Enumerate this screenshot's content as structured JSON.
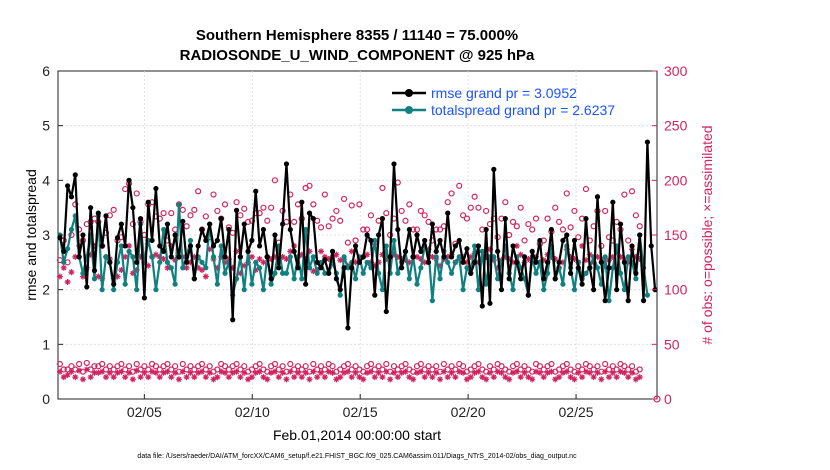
{
  "chart_data": {
    "type": "line",
    "title": [
      "Southern Hemisphere 8355 / 11140 = 75.000%",
      "RADIOSONDE_U_WIND_COMPONENT @ 925 hPa"
    ],
    "xlabel": "Feb.01,2014 00:00:00 start",
    "ylabel": "rmse and totalspread",
    "y2label": "# of obs: o=possible; ×=assimilated",
    "xlim": [
      1,
      28.75
    ],
    "ylim": [
      0,
      6
    ],
    "y2lim": [
      0,
      300
    ],
    "xticks": [
      5,
      10,
      15,
      20,
      25
    ],
    "xticklabels": [
      "02/05",
      "02/10",
      "02/15",
      "02/20",
      "02/25"
    ],
    "yticks": [
      0,
      1,
      2,
      3,
      4,
      5,
      6
    ],
    "y2ticks": [
      0,
      50,
      100,
      150,
      200,
      250,
      300
    ],
    "footnote": "data file: /Users/raeder/DAI/ATM_forcXX/CAM6_setup/f.e21.FHIST_BGC.f09_025.CAM6assim.011/Diags_NTrS_2014-02/obs_diag_output.nc",
    "legend": {
      "position": "top-right",
      "entries": [
        "rmse grand pr = 3.0952",
        "totalspread grand pr = 2.6237"
      ]
    },
    "series": [
      {
        "name": "rmse",
        "color": "#000000",
        "marker": "dot",
        "values": [
          2.95,
          2.7,
          3.9,
          3.7,
          4.1,
          2.6,
          3.0,
          2.05,
          3.5,
          2.35,
          3.4,
          2.8,
          3.35,
          2.5,
          2.1,
          2.95,
          3.2,
          2.8,
          4.0,
          3.5,
          2.5,
          3.3,
          1.85,
          3.6,
          2.9,
          3.85,
          2.8,
          2.7,
          3.2,
          2.6,
          3.0,
          2.6,
          3.25,
          2.5,
          2.8,
          2.2,
          2.8,
          3.1,
          2.9,
          3.2,
          2.8,
          2.9,
          3.3,
          2.6,
          3.1,
          1.45,
          3.45,
          2.6,
          3.2,
          2.7,
          2.9,
          3.8,
          2.8,
          3.1,
          2.6,
          2.2,
          3.0,
          2.4,
          3.2,
          4.3,
          3.1,
          2.7,
          2.4,
          3.6,
          2.1,
          3.4,
          3.3,
          2.5,
          2.4,
          2.55,
          2.3,
          2.7,
          2.2,
          2.0,
          2.4,
          1.3,
          2.4,
          2.8,
          2.5,
          2.6,
          3.0,
          2.9,
          1.9,
          3.0,
          3.3,
          1.6,
          2.6,
          4.3,
          3.1,
          2.4,
          2.7,
          3.1,
          2.6,
          3.0,
          2.7,
          2.9,
          2.5,
          3.2,
          2.7,
          2.9,
          2.6,
          3.4,
          2.6,
          2.8,
          2.9,
          2.5,
          2.75,
          2.3,
          2.5,
          2.8,
          1.7,
          3.1,
          1.75,
          4.2,
          2.7,
          2.0,
          3.3,
          2.2,
          2.8,
          2.5,
          2.2,
          2.6,
          1.9,
          2.7,
          2.5,
          2.9,
          2.2,
          2.5,
          3.1,
          2.2,
          2.5,
          2.9,
          3.0,
          2.3,
          2.9,
          2.4,
          2.1,
          3.3,
          2.4,
          2.0,
          3.7,
          2.5,
          1.8,
          2.4,
          3.6,
          2.0,
          3.2,
          2.5,
          1.8,
          2.8,
          2.3,
          3.0,
          1.8,
          4.7,
          2.8,
          2.0
        ]
      },
      {
        "name": "totalspread",
        "color": "#118080",
        "marker": "dot",
        "values": [
          3.0,
          2.5,
          2.75,
          3.1,
          3.35,
          2.6,
          2.3,
          2.6,
          3.0,
          2.2,
          3.35,
          2.0,
          2.6,
          2.5,
          2.0,
          2.5,
          2.8,
          2.1,
          2.7,
          2.6,
          2.0,
          3.2,
          2.5,
          2.9,
          2.6,
          2.0,
          2.5,
          3.1,
          2.5,
          2.4,
          2.1,
          3.55,
          2.4,
          2.6,
          2.9,
          2.2,
          2.6,
          2.5,
          2.4,
          3.2,
          2.6,
          2.1,
          2.8,
          2.3,
          2.5,
          1.9,
          2.2,
          2.6,
          2.0,
          2.7,
          2.1,
          2.5,
          2.4,
          2.0,
          2.6,
          2.1,
          2.3,
          2.8,
          2.3,
          2.3,
          2.6,
          2.2,
          2.6,
          2.2,
          3.1,
          2.4,
          2.6,
          2.3,
          2.5,
          2.3,
          2.3,
          2.5,
          2.3,
          1.9,
          2.6,
          2.4,
          2.5,
          2.2,
          2.6,
          2.3,
          2.5,
          2.4,
          2.9,
          2.3,
          2.0,
          2.8,
          2.3,
          2.9,
          2.3,
          2.5,
          2.7,
          2.2,
          2.6,
          2.1,
          2.4,
          2.8,
          2.7,
          1.8,
          2.6,
          2.2,
          2.7,
          2.5,
          2.3,
          2.5,
          2.6,
          2.0,
          2.4,
          2.3,
          2.8,
          2.0,
          2.7,
          2.1,
          2.6,
          2.6,
          2.2,
          2.5,
          2.8,
          2.3,
          2.0,
          2.6,
          2.4,
          2.2,
          1.9,
          2.6,
          2.3,
          2.5,
          2.0,
          2.3,
          2.8,
          2.2,
          2.4,
          2.1,
          2.8,
          2.4,
          2.0,
          2.5,
          2.2,
          2.3,
          2.4,
          2.6,
          2.4,
          2.1,
          2.6,
          1.8,
          2.4,
          2.8,
          2.3,
          2.0,
          2.6,
          2.5,
          2.2,
          3.0,
          2.4,
          1.9
        ]
      }
    ],
    "obs_possible_upper": [
      127,
      145,
      125,
      150,
      178,
      155,
      145,
      160,
      162,
      165,
      162,
      140,
      152,
      168,
      173,
      145,
      148,
      192,
      197,
      160,
      188,
      162,
      150,
      178,
      180,
      167,
      165,
      170,
      145,
      170,
      155,
      178,
      173,
      158,
      168,
      173,
      190,
      155,
      167,
      148,
      187,
      172,
      165,
      178,
      157,
      152,
      180,
      168,
      174,
      162,
      163,
      170,
      170,
      175,
      163,
      175,
      200,
      143,
      172,
      162,
      187,
      162,
      178,
      165,
      193,
      195,
      178,
      163,
      157,
      187,
      158,
      165,
      172,
      163,
      183,
      143,
      177,
      145,
      178,
      155,
      155,
      168,
      143,
      163,
      193,
      170,
      150,
      165,
      198,
      172,
      163,
      178,
      155,
      155,
      172,
      168,
      162,
      145,
      155,
      155,
      158,
      180,
      188,
      142,
      195,
      168,
      165,
      175,
      185,
      175,
      155,
      172,
      160,
      165,
      148,
      165,
      180,
      150,
      162,
      158,
      175,
      145,
      160,
      155,
      165,
      142,
      145,
      165,
      153,
      175,
      162,
      155,
      188,
      157,
      172,
      148,
      165,
      192,
      145,
      158,
      172,
      140,
      172,
      148,
      145,
      162,
      155,
      187,
      145,
      190,
      168,
      158
    ],
    "obs_assimilated_upper": [
      112,
      120,
      107,
      116,
      130,
      140,
      112,
      120,
      132,
      140,
      112,
      110,
      130,
      128,
      110,
      112,
      118,
      130,
      140,
      115,
      118,
      130,
      125,
      122,
      130,
      132,
      130,
      128,
      120,
      140,
      127,
      130,
      130,
      120,
      125,
      130,
      120,
      118,
      112,
      137,
      128,
      120,
      130,
      125,
      128,
      120,
      135,
      115,
      122,
      125,
      130,
      118,
      128,
      125,
      130,
      128,
      130,
      125,
      130,
      128,
      135,
      140,
      130,
      132,
      128,
      135,
      117,
      118,
      135,
      130,
      128,
      130,
      132,
      127,
      128,
      122,
      135,
      125,
      128,
      130,
      132,
      125,
      122,
      125,
      132,
      128,
      130,
      132,
      130,
      128,
      127,
      125,
      130,
      130,
      128,
      125,
      137,
      130,
      128,
      122,
      128,
      130,
      132,
      125,
      128,
      130,
      125,
      130,
      133,
      125,
      128,
      130,
      137,
      127,
      120,
      127,
      130,
      128,
      125,
      140,
      132,
      125,
      128,
      125,
      130,
      125,
      127,
      132,
      130,
      128,
      120,
      125,
      137,
      130,
      128,
      125,
      140,
      127,
      132,
      125,
      130,
      128,
      122,
      127,
      130,
      135,
      130,
      128,
      125,
      137,
      130,
      128
    ],
    "obs_possible_lower": [
      32,
      27,
      27,
      30,
      27,
      32,
      25,
      33,
      27,
      30,
      30,
      32,
      27,
      30,
      27,
      30,
      32,
      27,
      30,
      25,
      32,
      27,
      30,
      27,
      32,
      30,
      27,
      30,
      32,
      27,
      30,
      25,
      32,
      27,
      30,
      27,
      30,
      32,
      27,
      30,
      25,
      27,
      32,
      30,
      27,
      30,
      32,
      27,
      30,
      25,
      27,
      30,
      32,
      27,
      25,
      30,
      32,
      27,
      30,
      25,
      32,
      27,
      30,
      27,
      30,
      25,
      32,
      27,
      30,
      27,
      32,
      30,
      25,
      27,
      30,
      32,
      27,
      30,
      27,
      25,
      30,
      32,
      27,
      30,
      27,
      32,
      25,
      30,
      27,
      30,
      32,
      27,
      25,
      30,
      32,
      27,
      30,
      27,
      30,
      25,
      32,
      27,
      30,
      27,
      32,
      30,
      25,
      27,
      30,
      32,
      27,
      25,
      30,
      27,
      32,
      30,
      27,
      25,
      30,
      32,
      27,
      30,
      27,
      25,
      32,
      30,
      27,
      30,
      32,
      25,
      27,
      30,
      32,
      27,
      25,
      30,
      27,
      32,
      30,
      27,
      30,
      25,
      32,
      27,
      30,
      27,
      32,
      30,
      27,
      30,
      25,
      27
    ],
    "obs_assimilated_lower": [
      25,
      20,
      22,
      25,
      20,
      26,
      18,
      27,
      20,
      24,
      24,
      25,
      20,
      24,
      20,
      24,
      25,
      20,
      24,
      18,
      26,
      20,
      24,
      20,
      25,
      24,
      20,
      24,
      25,
      20,
      24,
      18,
      25,
      20,
      24,
      20,
      24,
      25,
      20,
      24,
      18,
      20,
      25,
      24,
      20,
      24,
      25,
      20,
      24,
      18,
      20,
      24,
      25,
      20,
      18,
      24,
      25,
      20,
      24,
      18,
      25,
      20,
      24,
      20,
      24,
      18,
      25,
      20,
      24,
      20,
      25,
      24,
      18,
      20,
      24,
      25,
      20,
      24,
      20,
      18,
      24,
      25,
      20,
      24,
      20,
      25,
      18,
      24,
      20,
      24,
      25,
      20,
      18,
      24,
      25,
      20,
      24,
      20,
      24,
      18,
      25,
      20,
      24,
      20,
      25,
      24,
      18,
      20,
      24,
      25,
      20,
      18,
      24,
      20,
      25,
      24,
      20,
      18,
      24,
      25,
      20,
      24,
      20,
      18,
      25,
      24,
      20,
      24,
      25,
      18,
      20,
      24,
      25,
      20,
      18,
      24,
      20,
      25,
      24,
      20,
      24,
      18,
      25,
      20,
      24,
      20,
      25,
      24,
      20,
      24,
      18,
      20
    ]
  }
}
